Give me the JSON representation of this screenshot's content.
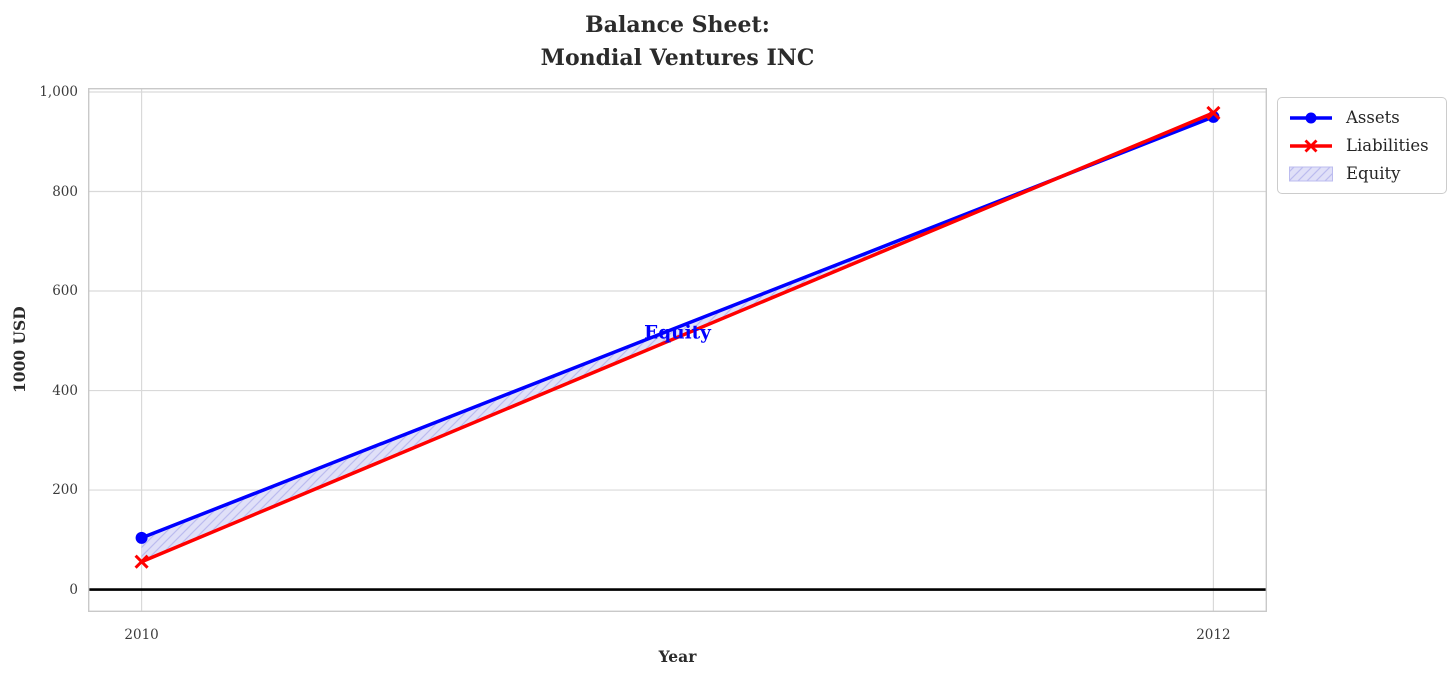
{
  "title": {
    "line1": "Balance Sheet:",
    "line2": "Mondial Ventures INC"
  },
  "chart_data": {
    "type": "line",
    "x": [
      2010,
      2012
    ],
    "xticks": [
      2010,
      2012
    ],
    "xtick_labels": [
      "2010",
      "2012"
    ],
    "yticks": [
      0,
      200,
      400,
      600,
      800,
      1000
    ],
    "ytick_labels": [
      "0",
      "200",
      "400",
      "600",
      "800",
      "1,000"
    ],
    "xlim": [
      2009.9,
      2012.1
    ],
    "ylim": [
      -45,
      1008
    ],
    "grid": true,
    "xlabel": "Year",
    "ylabel": "1000 USD",
    "series": [
      {
        "name": "Assets",
        "values": [
          104,
          950
        ],
        "color": "#0000ff",
        "marker": "circle"
      },
      {
        "name": "Liabilities",
        "values": [
          56,
          958
        ],
        "color": "#ff0000",
        "marker": "x"
      }
    ],
    "equity": {
      "name": "Equity",
      "fill_color": "#e0e0f8",
      "hatch_color": "#bcbcef"
    },
    "annotation": {
      "text": "Equity",
      "x": 2011,
      "y": 516,
      "color": "#0000ff"
    },
    "zero_line": {
      "y": 0,
      "color": "#000000"
    },
    "legend": {
      "position": "outside-top-right",
      "entries": [
        "Assets",
        "Liabilities",
        "Equity"
      ]
    }
  }
}
